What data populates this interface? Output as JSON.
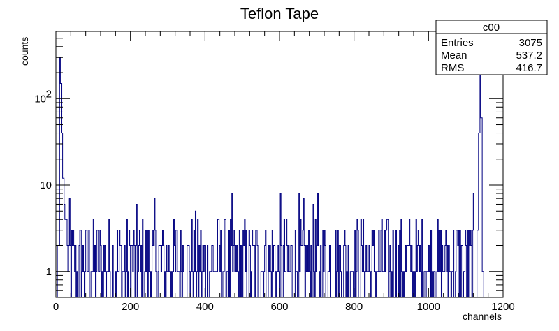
{
  "chart_data": {
    "type": "histogram",
    "title": "Teflon Tape",
    "xlabel": "channels",
    "ylabel": "counts",
    "xlim": [
      0,
      1200
    ],
    "ylim": [
      0.5,
      600
    ],
    "y_scale": "log",
    "color": "#000080",
    "x_ticks": [
      {
        "value": 0,
        "label": "0"
      },
      {
        "value": 200,
        "label": "200"
      },
      {
        "value": 400,
        "label": "400"
      },
      {
        "value": 600,
        "label": "600"
      },
      {
        "value": 800,
        "label": "800"
      },
      {
        "value": 1000,
        "label": "1000"
      },
      {
        "value": 1200,
        "label": "1200"
      }
    ],
    "y_ticks": [
      {
        "value": 1,
        "label": "1"
      },
      {
        "value": 10,
        "label": "10"
      },
      {
        "value": 100,
        "label": "10",
        "exponent": "2"
      }
    ],
    "features": [
      {
        "x_start": 5,
        "x_end": 10,
        "level": 2
      },
      {
        "x_start": 10,
        "x_end": 13,
        "level": 300
      },
      {
        "x_start": 13,
        "x_end": 16,
        "level": 150
      },
      {
        "x_start": 16,
        "x_end": 19,
        "level": 40
      },
      {
        "x_start": 19,
        "x_end": 22,
        "level": 12
      },
      {
        "x_start": 22,
        "x_end": 25,
        "level": 6
      },
      {
        "x_start": 25,
        "x_end": 30,
        "level": 4
      },
      {
        "x_start": 1130,
        "x_end": 1134,
        "level": 3
      },
      {
        "x_start": 1134,
        "x_end": 1138,
        "level": 40
      },
      {
        "x_start": 1138,
        "x_end": 1141,
        "level": 200
      },
      {
        "x_start": 1141,
        "x_end": 1144,
        "level": 60
      },
      {
        "x_start": 1144,
        "x_end": 1148,
        "level": 1
      }
    ],
    "continuum": {
      "x_start": 30,
      "x_end": 1130,
      "typical_levels": [
        1,
        2,
        3,
        4
      ],
      "max_level": 8
    },
    "stats_box": {
      "name": "c00",
      "rows": [
        {
          "label": "Entries",
          "value": "3075"
        },
        {
          "label": "Mean",
          "value": "537.2"
        },
        {
          "label": "RMS",
          "value": "416.7"
        }
      ]
    }
  }
}
